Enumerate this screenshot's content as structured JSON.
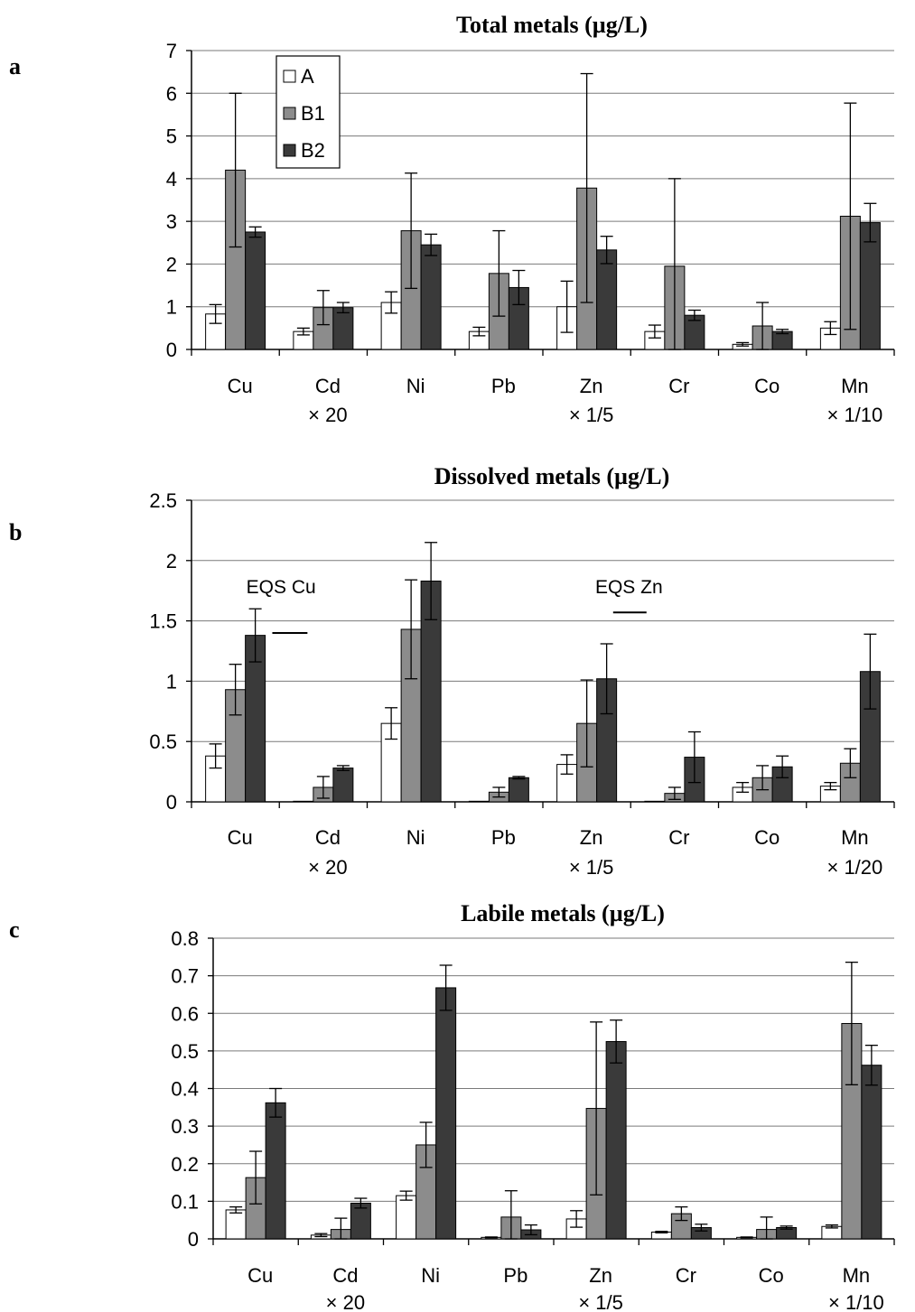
{
  "figure": {
    "panel_labels": [
      "a",
      "b",
      "c"
    ]
  },
  "legend": {
    "entries": [
      {
        "name": "A",
        "color": "#ffffff"
      },
      {
        "name": "B1",
        "color": "#8c8c8c"
      },
      {
        "name": "B2",
        "color": "#3a3a3a"
      }
    ]
  },
  "chart_data": [
    {
      "type": "bar",
      "title": "Total metals (µg/L)",
      "panel": "a",
      "categories": [
        "Cu",
        "Cd",
        "Ni",
        "Pb",
        "Zn",
        "Cr",
        "Co",
        "Mn"
      ],
      "category_factors": [
        "",
        "× 20",
        "",
        "",
        "× 1/5",
        "",
        "",
        "× 1/10"
      ],
      "ylim": [
        0,
        7
      ],
      "yticks": [
        "0",
        "1",
        "2",
        "3",
        "4",
        "5",
        "6",
        "7"
      ],
      "grid": true,
      "legend_position": "top-left",
      "series": [
        {
          "name": "A",
          "values": [
            0.83,
            0.42,
            1.1,
            0.42,
            1.0,
            0.42,
            0.12,
            0.5
          ],
          "errors": [
            0.22,
            0.08,
            0.25,
            0.1,
            0.6,
            0.15,
            0.04,
            0.15
          ]
        },
        {
          "name": "B1",
          "values": [
            4.2,
            0.98,
            2.78,
            1.78,
            3.78,
            1.95,
            0.55,
            3.12
          ],
          "errors": [
            1.8,
            0.4,
            1.35,
            1.0,
            2.68,
            2.05,
            0.55,
            2.65
          ]
        },
        {
          "name": "B2",
          "values": [
            2.75,
            0.98,
            2.45,
            1.45,
            2.33,
            0.8,
            0.42,
            2.97
          ],
          "errors": [
            0.12,
            0.12,
            0.25,
            0.4,
            0.32,
            0.12,
            0.05,
            0.45
          ]
        }
      ]
    },
    {
      "type": "bar",
      "title": "Dissolved metals (µg/L)",
      "panel": "b",
      "categories": [
        "Cu",
        "Cd",
        "Ni",
        "Pb",
        "Zn",
        "Cr",
        "Co",
        "Mn"
      ],
      "category_factors": [
        "",
        "× 20",
        "",
        "",
        "× 1/5",
        "",
        "",
        "× 1/20"
      ],
      "ylim": [
        0,
        2.5
      ],
      "yticks": [
        "0",
        "0.5",
        "1",
        "1.5",
        "2",
        "2.5"
      ],
      "grid": true,
      "series": [
        {
          "name": "A",
          "values": [
            0.38,
            0.005,
            0.65,
            0.005,
            0.31,
            0.005,
            0.12,
            0.13
          ],
          "errors": [
            0.1,
            0.0,
            0.13,
            0.0,
            0.08,
            0.0,
            0.04,
            0.03
          ]
        },
        {
          "name": "B1",
          "values": [
            0.93,
            0.12,
            1.43,
            0.08,
            0.65,
            0.07,
            0.2,
            0.32
          ],
          "errors": [
            0.21,
            0.09,
            0.41,
            0.04,
            0.36,
            0.05,
            0.1,
            0.12
          ]
        },
        {
          "name": "B2",
          "values": [
            1.38,
            0.28,
            1.83,
            0.2,
            1.02,
            0.37,
            0.29,
            1.08
          ],
          "errors": [
            0.22,
            0.02,
            0.32,
            0.01,
            0.29,
            0.21,
            0.09,
            0.31
          ]
        }
      ],
      "reference_lines": [
        {
          "label": "EQS Cu",
          "value": 1.4,
          "category_index": 0
        },
        {
          "label": "EQS Zn",
          "value": 1.57,
          "category_index": 4
        }
      ]
    },
    {
      "type": "bar",
      "title": "Labile metals (µg/L)",
      "panel": "c",
      "categories": [
        "Cu",
        "Cd",
        "Ni",
        "Pb",
        "Zn",
        "Cr",
        "Co",
        "Mn"
      ],
      "category_factors": [
        "",
        "× 20",
        "",
        "",
        "× 1/5",
        "",
        "",
        "× 1/10"
      ],
      "ylim": [
        0,
        0.8
      ],
      "yticks": [
        "0",
        "0.1",
        "0.2",
        "0.3",
        "0.4",
        "0.5",
        "0.6",
        "0.7",
        "0.8"
      ],
      "grid": true,
      "series": [
        {
          "name": "A",
          "values": [
            0.077,
            0.01,
            0.115,
            0.004,
            0.053,
            0.018,
            0.004,
            0.033
          ],
          "errors": [
            0.008,
            0.004,
            0.012,
            0.001,
            0.022,
            0.002,
            0.001,
            0.004
          ]
        },
        {
          "name": "B1",
          "values": [
            0.163,
            0.025,
            0.25,
            0.058,
            0.347,
            0.067,
            0.025,
            0.573
          ],
          "errors": [
            0.07,
            0.03,
            0.06,
            0.07,
            0.23,
            0.018,
            0.033,
            0.163
          ]
        },
        {
          "name": "B2",
          "values": [
            0.362,
            0.095,
            0.668,
            0.024,
            0.525,
            0.03,
            0.03,
            0.462
          ],
          "errors": [
            0.038,
            0.013,
            0.06,
            0.013,
            0.057,
            0.009,
            0.004,
            0.053
          ]
        }
      ]
    }
  ]
}
